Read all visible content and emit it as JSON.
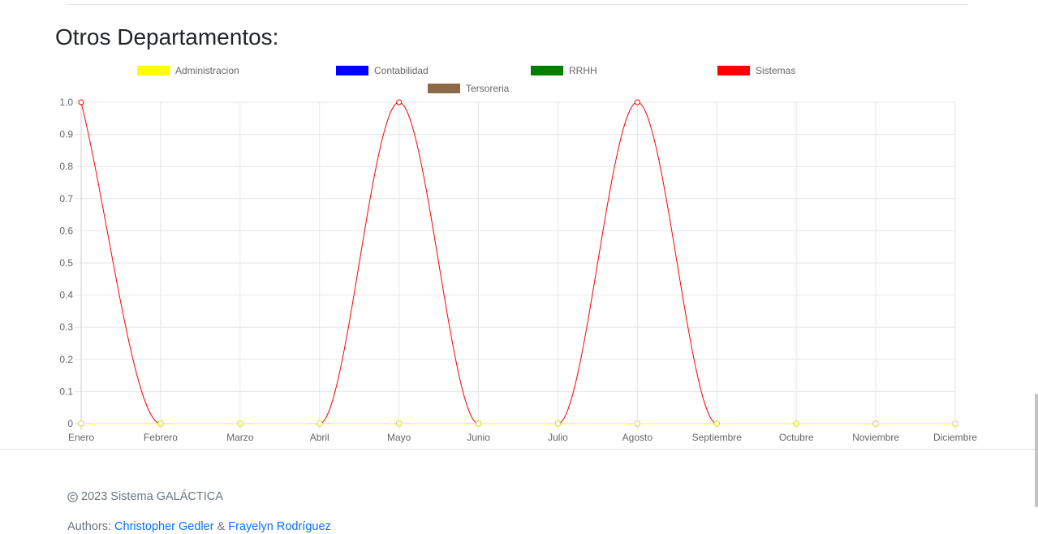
{
  "page_title": "Otros Departamentos:",
  "chart_data": {
    "type": "line",
    "categories": [
      "Enero",
      "Febrero",
      "Marzo",
      "Abril",
      "Mayo",
      "Junio",
      "Julio",
      "Agosto",
      "Septiembre",
      "Octubre",
      "Noviembre",
      "Diciembre"
    ],
    "y_ticks": [
      "1.0",
      "0.9",
      "0.8",
      "0.7",
      "0.6",
      "0.5",
      "0.4",
      "0.3",
      "0.2",
      "0.1",
      "0"
    ],
    "ylim": [
      0,
      1
    ],
    "grid": true,
    "legend_position": "top",
    "series": [
      {
        "name": "Administracion",
        "color": "#ffff00",
        "values": [
          0,
          0,
          0,
          0,
          0,
          0,
          0,
          0,
          0,
          0,
          0,
          0
        ]
      },
      {
        "name": "Contabilidad",
        "color": "#0000ff",
        "values": [
          0,
          0,
          0,
          0,
          0,
          0,
          0,
          0,
          0,
          0,
          0,
          0
        ]
      },
      {
        "name": "RRHH",
        "color": "#008000",
        "values": [
          0,
          0,
          0,
          0,
          0,
          0,
          0,
          0,
          0,
          0,
          0,
          0
        ]
      },
      {
        "name": "Sistemas",
        "color": "#ff0000",
        "values": [
          1,
          0,
          0,
          0,
          1,
          0,
          0,
          1,
          0,
          0,
          0,
          0
        ]
      },
      {
        "name": "Tersoreria",
        "color": "#8b6b46",
        "values": [
          0,
          0,
          0,
          0,
          0,
          0,
          0,
          0,
          0,
          0,
          0,
          0
        ]
      }
    ]
  },
  "footer": {
    "copyright_icon": "copyright-icon",
    "copyright": "2023 Sistema GALÁCTICA",
    "authors_label": "Authors:",
    "author1": "Christopher Gedler",
    "separator": "&",
    "author2": "Frayelyn Rodríguez"
  }
}
